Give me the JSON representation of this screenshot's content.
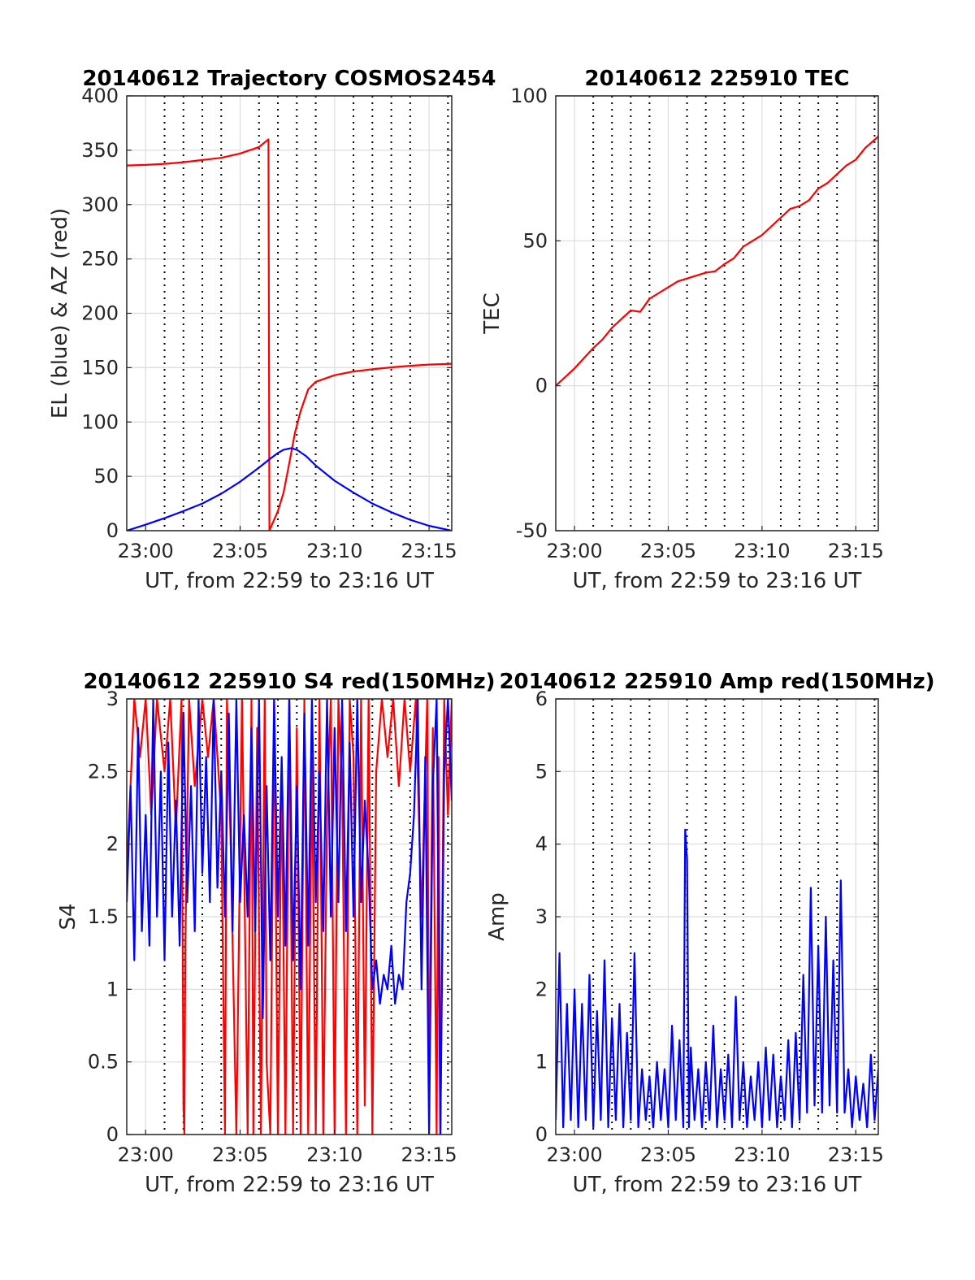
{
  "colors": {
    "el": "#0000ff",
    "az": "#ff0000",
    "tec": "#ff0000",
    "grid": "#dcdcdc",
    "axis": "#262626"
  },
  "chart_data": [
    {
      "id": "trajectory",
      "type": "line",
      "title": "20140612 Trajectory COSMOS2454",
      "xlabel": "UT, from 22:59 to 23:16 UT",
      "ylabel": "EL (blue) & AZ (red)",
      "x_ticks": [
        "23:00",
        "23:05",
        "23:10",
        "23:15"
      ],
      "y_ticks": [
        "0",
        "50",
        "100",
        "150",
        "200",
        "250",
        "300",
        "350",
        "400"
      ],
      "xlim_min": [
        -1,
        16.2
      ],
      "ylim": [
        0,
        400
      ],
      "grid": true,
      "series": [
        {
          "color": "#ff0000",
          "x": [
            -1,
            0,
            1,
            2,
            3,
            4,
            5,
            6,
            6.5,
            6.55,
            6.6,
            7,
            7.3,
            7.6,
            7.9,
            8.2,
            8.6,
            9,
            10,
            11,
            12,
            13,
            14,
            15,
            16.2
          ],
          "y": [
            336,
            336.5,
            337.5,
            339,
            341,
            343,
            347,
            353,
            360,
            0,
            2,
            18,
            35,
            62,
            90,
            110,
            130,
            137,
            143,
            146.5,
            148.5,
            150.3,
            151.7,
            152.8,
            153.6
          ]
        },
        {
          "color": "#0000ff",
          "x": [
            -1,
            0,
            1,
            2,
            3,
            4,
            5,
            6,
            6.5,
            7,
            7.3,
            7.7,
            8,
            8.5,
            9,
            10,
            11,
            12,
            13,
            14,
            15,
            16.2
          ],
          "y": [
            0,
            5.5,
            11.5,
            18,
            25,
            34,
            45,
            58,
            65,
            71.5,
            74.5,
            76,
            74.5,
            68.5,
            60,
            46,
            35,
            25,
            17,
            10,
            4.5,
            0
          ]
        }
      ]
    },
    {
      "id": "tec",
      "type": "line",
      "title": "20140612 225910 TEC",
      "xlabel": "UT, from 22:59 to 23:16 UT",
      "ylabel": "TEC",
      "x_ticks": [
        "23:00",
        "23:05",
        "23:10",
        "23:15"
      ],
      "y_ticks": [
        "-50",
        "0",
        "50",
        "100"
      ],
      "xlim_min": [
        -1,
        16.2
      ],
      "ylim": [
        -50,
        100
      ],
      "grid": true,
      "series": [
        {
          "color": "#ff0000",
          "x": [
            -1,
            0,
            1,
            1.5,
            2,
            2.5,
            3,
            3.5,
            4,
            4.5,
            5,
            5.5,
            6,
            6.5,
            7,
            7.5,
            8,
            8.5,
            9,
            9.5,
            10,
            10.5,
            11,
            11.5,
            12,
            12.5,
            13,
            13.5,
            14,
            14.5,
            15,
            15.5,
            16.2
          ],
          "y": [
            0,
            6,
            13,
            16,
            20,
            23,
            26,
            25.5,
            30,
            32,
            34,
            36,
            37,
            38,
            39,
            39.5,
            42,
            44,
            48,
            50,
            52,
            55,
            58,
            61,
            62,
            64,
            68,
            70,
            73,
            76,
            78,
            82,
            86
          ]
        }
      ]
    },
    {
      "id": "s4",
      "type": "line",
      "title": "20140612 225910 S4 red(150MHz)",
      "xlabel": "UT, from 22:59 to 23:16 UT",
      "ylabel": "S4",
      "x_ticks": [
        "23:00",
        "23:05",
        "23:10",
        "23:15"
      ],
      "y_ticks": [
        "0",
        "0.5",
        "1",
        "1.5",
        "2",
        "2.5",
        "3"
      ],
      "xlim_min": [
        -1,
        16.2
      ],
      "ylim": [
        0,
        3
      ],
      "grid": true,
      "series": [
        {
          "color": "#ff0000",
          "x": [
            -1,
            -0.6,
            -0.3,
            0,
            0.3,
            0.6,
            1,
            1.3,
            1.6,
            1.9,
            2,
            2.05,
            2.1,
            2.3,
            2.6,
            3,
            3.3,
            3.6,
            4,
            4.2,
            4.3,
            4.5,
            4.8,
            5.1,
            5.4,
            5.6,
            5.7,
            5.9,
            6.1,
            6.3,
            6.4,
            6.6,
            6.8,
            7.0,
            7.2,
            7.4,
            7.6,
            7.8,
            8.0,
            8.2,
            8.4,
            8.6,
            8.8,
            9.0,
            9.2,
            9.4,
            9.6,
            9.8,
            10.0,
            10.2,
            10.4,
            10.6,
            10.8,
            11,
            11.2,
            11.4,
            11.6,
            11.8,
            12.0,
            12.2,
            12.5,
            12.8,
            13.1,
            13.4,
            13.7,
            14,
            14.3,
            14.6,
            14.9,
            15,
            15.2,
            15.4,
            15.5,
            15.6,
            15.8,
            16.0,
            16.2
          ],
          "y": [
            1.8,
            3,
            2.6,
            3,
            2.2,
            3,
            2.5,
            3,
            2.1,
            3,
            0.2,
            0,
            1.3,
            3,
            2.4,
            3,
            2.6,
            3,
            2.2,
            0,
            3,
            2.0,
            0,
            3,
            0,
            3,
            0,
            2.8,
            0,
            3,
            0.5,
            0,
            3,
            0,
            2.5,
            0,
            3,
            0,
            2.8,
            0,
            3,
            0,
            2.6,
            0,
            3,
            0,
            2.2,
            3,
            0,
            3,
            2.4,
            0,
            3,
            2.6,
            0,
            3,
            0.2,
            3,
            0,
            2.5,
            3,
            2.6,
            3,
            2.4,
            3,
            2.5,
            3,
            1.5,
            3,
            0.2,
            2.8,
            0,
            2.6,
            0,
            3,
            2.2,
            3
          ]
        },
        {
          "color": "#0000ff",
          "x": [
            -1,
            -0.8,
            -0.6,
            -0.4,
            -0.2,
            0,
            0.2,
            0.4,
            0.6,
            0.8,
            1,
            1.2,
            1.4,
            1.6,
            1.8,
            2,
            2.2,
            2.4,
            2.6,
            2.8,
            3,
            3.2,
            3.4,
            3.6,
            3.8,
            4,
            4.2,
            4.4,
            4.6,
            4.8,
            5,
            5.2,
            5.4,
            5.6,
            5.8,
            6,
            6.2,
            6.4,
            6.6,
            6.8,
            7,
            7.2,
            7.4,
            7.6,
            7.8,
            8,
            8.2,
            8.4,
            8.6,
            8.8,
            9,
            9.2,
            9.4,
            9.6,
            9.8,
            10,
            10.2,
            10.4,
            10.6,
            10.8,
            11,
            11.2,
            11.4,
            11.6,
            11.8,
            12,
            12.2,
            12.4,
            12.6,
            12.8,
            13,
            13.2,
            13.4,
            13.6,
            13.8,
            14,
            14.2,
            14.4,
            14.6,
            14.8,
            15,
            15.2,
            15.4,
            15.6,
            15.8,
            16,
            16.2
          ],
          "y": [
            1.6,
            2.4,
            1.2,
            2.8,
            1.4,
            2.2,
            1.3,
            3,
            1.5,
            2.5,
            1.2,
            2.7,
            1.5,
            2.3,
            1.3,
            2.9,
            1.6,
            2.4,
            1.4,
            3,
            1.8,
            2.6,
            1.6,
            3,
            1.7,
            2.5,
            1.5,
            2.9,
            1.4,
            3,
            1.6,
            2.2,
            1.5,
            2.8,
            1.4,
            3,
            0.8,
            2.4,
            1.2,
            3,
            1.5,
            2.6,
            1.3,
            3,
            1.2,
            2.4,
            1.0,
            2.9,
            1.3,
            3,
            1.6,
            2.5,
            1.4,
            3,
            1.5,
            2.8,
            1.6,
            3,
            1.4,
            2.7,
            1.5,
            3,
            1.6,
            2.3,
            1.8,
            1.0,
            1.2,
            0.9,
            1.1,
            1.0,
            1.3,
            0.9,
            1.1,
            1.0,
            1.6,
            1.8,
            2.2,
            3,
            1.0,
            2.6,
            0,
            2.4,
            3,
            0,
            2.5,
            3,
            2.3
          ]
        }
      ]
    },
    {
      "id": "amp",
      "type": "line",
      "title": "20140612 225910 Amp red(150MHz)",
      "xlabel": "UT, from 22:59 to 23:16 UT",
      "ylabel": "Amp",
      "x_ticks": [
        "23:00",
        "23:05",
        "23:10",
        "23:15"
      ],
      "y_ticks": [
        "0",
        "1",
        "2",
        "3",
        "4",
        "5",
        "6"
      ],
      "xlim_min": [
        -1,
        16.2
      ],
      "ylim": [
        0,
        6
      ],
      "grid": true,
      "series": [
        {
          "color": "#0000ff",
          "x": [
            -1,
            -0.8,
            -0.6,
            -0.4,
            -0.2,
            0,
            0.2,
            0.4,
            0.6,
            0.8,
            1,
            1.2,
            1.4,
            1.6,
            1.8,
            2,
            2.2,
            2.4,
            2.6,
            2.8,
            3,
            3.2,
            3.4,
            3.6,
            3.8,
            4,
            4.2,
            4.4,
            4.6,
            4.8,
            5,
            5.2,
            5.4,
            5.6,
            5.8,
            5.9,
            6.0,
            6.1,
            6.2,
            6.4,
            6.6,
            6.8,
            7,
            7.2,
            7.4,
            7.6,
            7.8,
            8,
            8.2,
            8.4,
            8.6,
            8.8,
            9,
            9.2,
            9.4,
            9.6,
            9.8,
            10,
            10.2,
            10.4,
            10.6,
            10.8,
            11,
            11.2,
            11.4,
            11.6,
            11.8,
            12,
            12.2,
            12.4,
            12.6,
            12.8,
            13,
            13.2,
            13.4,
            13.6,
            13.8,
            14,
            14.2,
            14.4,
            14.6,
            14.8,
            15,
            15.2,
            15.4,
            15.6,
            15.8,
            16,
            16.2
          ],
          "y": [
            0.2,
            2.5,
            0.1,
            1.8,
            0.2,
            2.0,
            0.1,
            1.8,
            0.2,
            2.2,
            0.1,
            1.7,
            0.2,
            2.4,
            0.1,
            1.6,
            0.2,
            1.8,
            0.1,
            1.4,
            0.2,
            2.5,
            0.1,
            0.9,
            0.2,
            0.8,
            0.1,
            1.0,
            0.2,
            0.9,
            0.1,
            1.5,
            0.2,
            1.3,
            0.1,
            4.2,
            3.8,
            0.1,
            1.2,
            0.2,
            0.9,
            0.1,
            1.0,
            0.2,
            1.5,
            0.1,
            0.9,
            0.2,
            1.1,
            0.1,
            1.9,
            0.2,
            1.0,
            0.1,
            0.8,
            0.2,
            1.0,
            0.1,
            1.2,
            0.2,
            1.1,
            0.1,
            0.8,
            0.2,
            1.3,
            0.1,
            1.4,
            0.2,
            2.2,
            0.3,
            3.4,
            0.4,
            2.6,
            0.3,
            3.0,
            0.4,
            2.4,
            0.3,
            3.5,
            0.3,
            0.9,
            0.1,
            0.8,
            0.2,
            0.7,
            0.1,
            1.1,
            0.2,
            0.9
          ]
        }
      ]
    }
  ]
}
